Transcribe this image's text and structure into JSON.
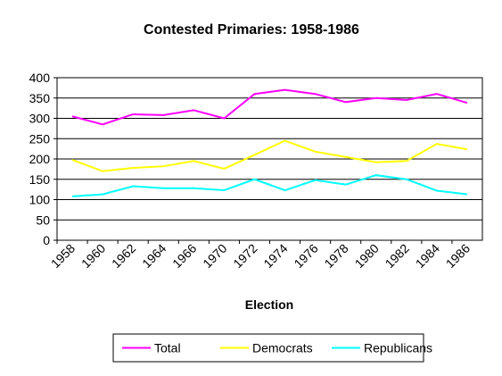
{
  "chart_data": {
    "type": "line",
    "title": "Contested Primaries: 1958-1986",
    "x_label": "Election",
    "categories": [
      "1958",
      "1960",
      "1962",
      "1964",
      "1966",
      "1970",
      "1972",
      "1974",
      "1976",
      "1978",
      "1980",
      "1982",
      "1984",
      "1986"
    ],
    "series": [
      {
        "name": "Total",
        "color": "#ff00ff",
        "values": [
          305,
          285,
          310,
          308,
          320,
          300,
          360,
          370,
          360,
          340,
          350,
          345,
          360,
          338
        ]
      },
      {
        "name": "Democrats",
        "color": "#ffff00",
        "values": [
          198,
          170,
          178,
          182,
          195,
          176,
          210,
          245,
          218,
          205,
          192,
          195,
          237,
          224
        ]
      },
      {
        "name": "Republicans",
        "color": "#00ffff",
        "values": [
          108,
          113,
          133,
          128,
          128,
          123,
          150,
          123,
          148,
          137,
          160,
          150,
          122,
          113
        ]
      }
    ],
    "ylim": [
      0,
      400
    ],
    "yticks": [
      0,
      50,
      100,
      150,
      200,
      250,
      300,
      350,
      400
    ],
    "grid": true,
    "legend": "bottom"
  }
}
